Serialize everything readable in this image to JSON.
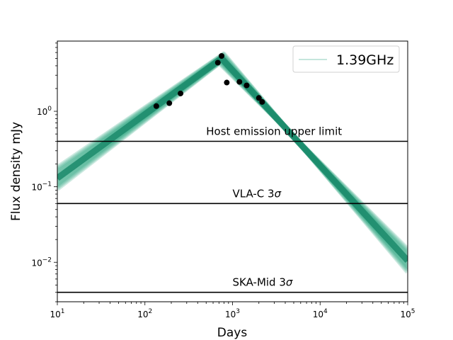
{
  "chart_data": {
    "type": "line",
    "title": "",
    "xlabel": "Days",
    "ylabel": "Flux density mJy",
    "xscale": "log",
    "yscale": "log",
    "xlim": [
      10,
      100000
    ],
    "ylim": [
      0.003,
      8.5
    ],
    "x_ticks": [
      {
        "value": 10,
        "base": "10",
        "exp": "1"
      },
      {
        "value": 100,
        "base": "10",
        "exp": "2"
      },
      {
        "value": 1000,
        "base": "10",
        "exp": "3"
      },
      {
        "value": 10000,
        "base": "10",
        "exp": "4"
      },
      {
        "value": 100000,
        "base": "10",
        "exp": "5"
      }
    ],
    "y_ticks": [
      {
        "value": 1,
        "base": "10",
        "exp": "0"
      },
      {
        "value": 0.1,
        "base": "10",
        "exp": "−1"
      },
      {
        "value": 0.01,
        "base": "10",
        "exp": "−2"
      }
    ],
    "series": [
      {
        "name": "1.39GHz",
        "color": "#1b8a6b",
        "band_color": "#1b9e77",
        "model": {
          "peak_day": 750,
          "peak_flux": 5.0,
          "rise_start": [
            10,
            0.13
          ],
          "decay_end": [
            100000,
            0.0105
          ]
        }
      }
    ],
    "observations": {
      "color": "#000000",
      "points": [
        {
          "x": 135,
          "y": 1.17
        },
        {
          "x": 190,
          "y": 1.28
        },
        {
          "x": 255,
          "y": 1.72
        },
        {
          "x": 680,
          "y": 4.4
        },
        {
          "x": 750,
          "y": 5.4
        },
        {
          "x": 860,
          "y": 2.4
        },
        {
          "x": 1200,
          "y": 2.45
        },
        {
          "x": 1450,
          "y": 2.2
        },
        {
          "x": 2000,
          "y": 1.5
        },
        {
          "x": 2180,
          "y": 1.33
        }
      ]
    },
    "reference_lines": [
      {
        "y": 0.4,
        "label": "Host emission upper limit",
        "label_x": 500
      },
      {
        "y": 0.06,
        "label": "VLA-C 3",
        "symbol": "σ",
        "label_x": 1000
      },
      {
        "y": 0.004,
        "label": "SKA-Mid 3",
        "symbol": "σ",
        "label_x": 1000
      }
    ],
    "legend": {
      "position": "top-right",
      "entries": [
        "1.39GHz"
      ]
    },
    "grid": false
  }
}
